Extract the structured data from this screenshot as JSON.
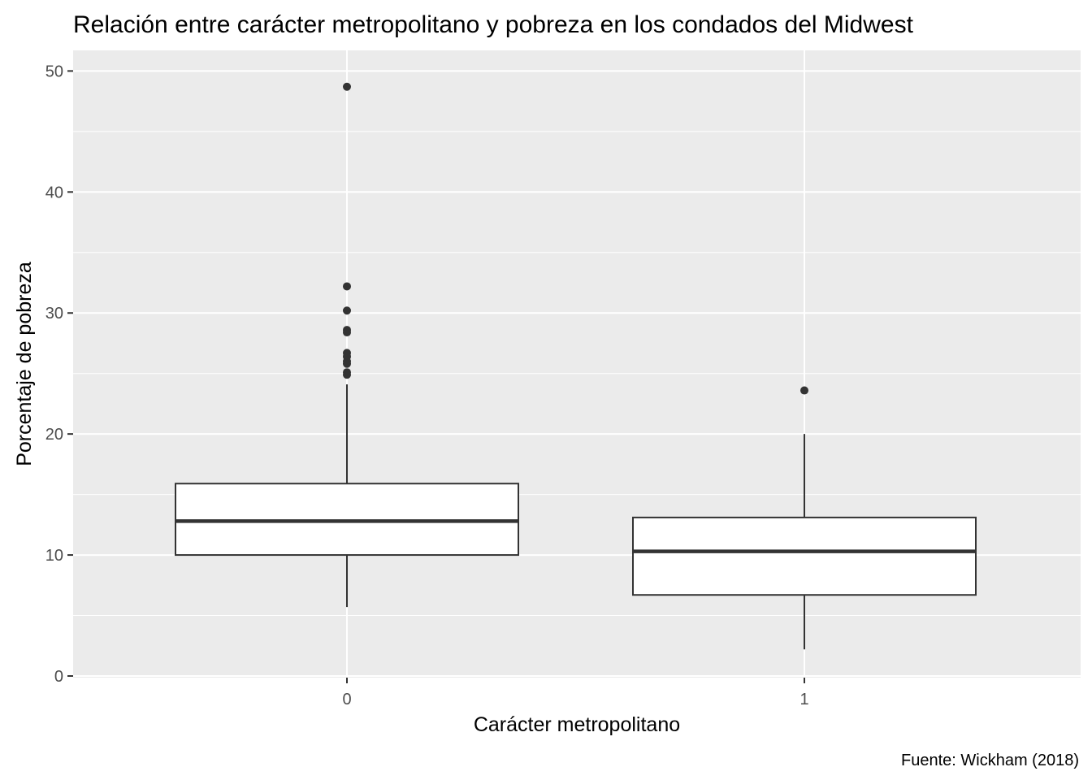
{
  "chart_data": {
    "type": "boxplot",
    "title": "Relación entre carácter metropolitano y pobreza en los condados del Midwest",
    "xlabel": "Carácter metropolitano",
    "ylabel": "Porcentaje de pobreza",
    "caption": "Fuente: Wickham (2018)",
    "categories": [
      "0",
      "1"
    ],
    "ylim": [
      0,
      51
    ],
    "yticks": [
      0,
      10,
      20,
      30,
      40,
      50
    ],
    "ytick_labels": [
      "0",
      "10",
      "20",
      "30",
      "40",
      "50"
    ],
    "grid": true,
    "panel_background": "#ebebeb",
    "grid_color": "#ffffff",
    "box_fill": "#ffffff",
    "box_stroke": "#333333",
    "boxes": [
      {
        "category": "0",
        "lower_whisker": 5.7,
        "q1": 10.0,
        "median": 12.8,
        "q3": 15.9,
        "upper_whisker": 24.1,
        "outliers": [
          48.7,
          32.2,
          30.2,
          28.6,
          28.4,
          26.7,
          26.4,
          26.0,
          25.8,
          25.1,
          24.9
        ]
      },
      {
        "category": "1",
        "lower_whisker": 2.2,
        "q1": 6.7,
        "median": 10.3,
        "q3": 13.1,
        "upper_whisker": 20.0,
        "outliers": [
          23.6
        ]
      }
    ]
  }
}
